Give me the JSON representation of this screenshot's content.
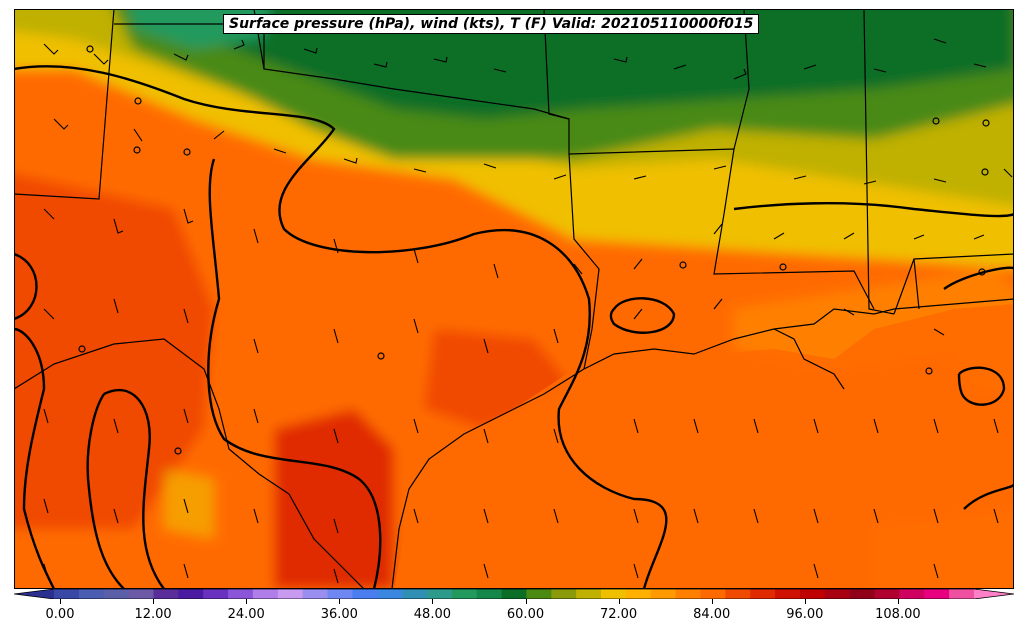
{
  "title": "Surface pressure (hPa), wind (kts), T (F) Valid: 202105110000f015",
  "colorbar": {
    "ticks": [
      "0.00",
      "12.00",
      "24.00",
      "36.00",
      "48.00",
      "60.00",
      "72.00",
      "84.00",
      "96.00",
      "108.00"
    ],
    "colors": [
      "#2b2f8f",
      "#3a48a5",
      "#4b5db0",
      "#5a5fa8",
      "#6d5aa6",
      "#5a2d9a",
      "#4a1aa0",
      "#6a30c0",
      "#8a55d8",
      "#b07ee8",
      "#c89af0",
      "#9a8ff0",
      "#6f87f2",
      "#4a7ef0",
      "#3a86e0",
      "#2f8fb5",
      "#2e9a8c",
      "#229a5d",
      "#16874a",
      "#0c6e26",
      "#4a8a12",
      "#8a9a0a",
      "#c0b000",
      "#f0c000",
      "#ffb000",
      "#ff9a00",
      "#ff8000",
      "#ff6a00",
      "#f04a00",
      "#e02a00",
      "#d01000",
      "#c00000",
      "#a80010",
      "#900018",
      "#b00030",
      "#d00060",
      "#e80080",
      "#f050a0",
      "#ff80c8"
    ]
  }
}
